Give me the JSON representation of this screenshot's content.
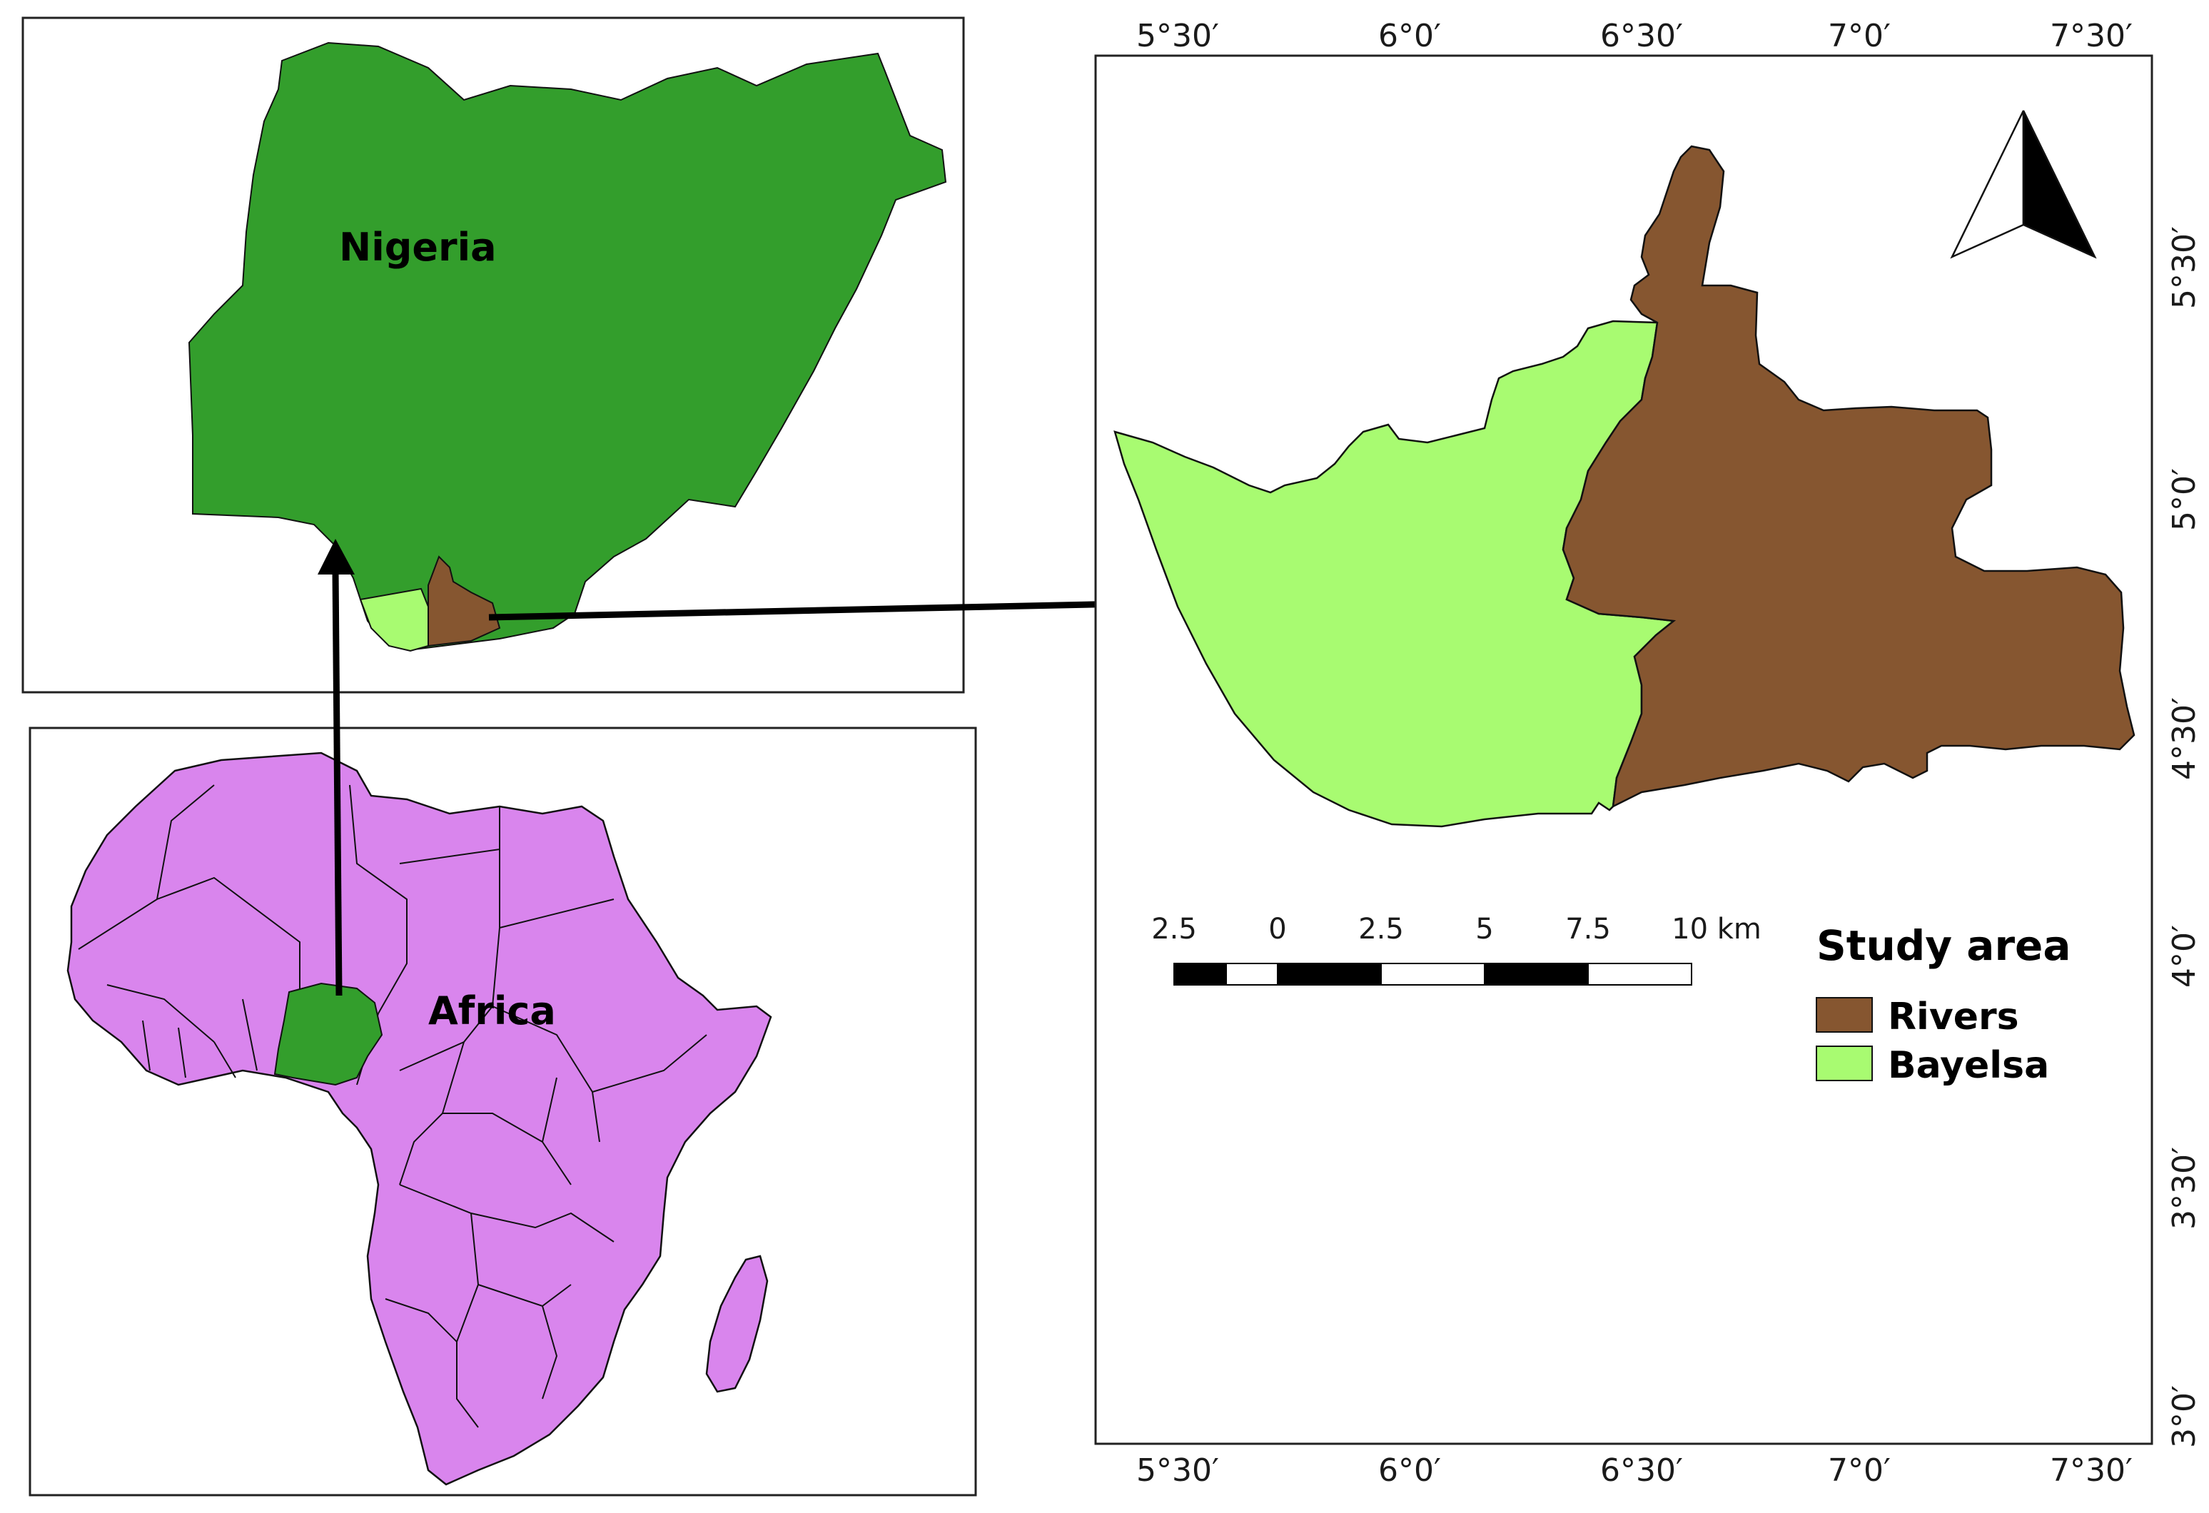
{
  "inset_nigeria": {
    "label": "Nigeria",
    "fill": "#339e2c"
  },
  "inset_africa": {
    "label": "Africa",
    "fill": "#d985ed",
    "highlight_fill": "#339e2c"
  },
  "main_map": {
    "top_longitudes": [
      "5°30′",
      "6°0′",
      "6°30′",
      "7°0′",
      "7°30′"
    ],
    "bottom_longitudes": [
      "5°30′",
      "6°0′",
      "6°30′",
      "7°0′",
      "7°30′"
    ],
    "right_latitudes": [
      "5°30′",
      "5°0′",
      "4°30′",
      "4°0′",
      "3°30′",
      "3°0′"
    ]
  },
  "scale_bar": {
    "labels": [
      "2.5",
      "0",
      "2.5",
      "5",
      "7.5",
      "10 km"
    ]
  },
  "legend": {
    "title": "Study area",
    "items": [
      {
        "label": "Rivers",
        "color": "#865630"
      },
      {
        "label": "Bayelsa",
        "color": "#a8fb71"
      }
    ]
  },
  "icons": {
    "north_arrow": "north-arrow-icon"
  }
}
